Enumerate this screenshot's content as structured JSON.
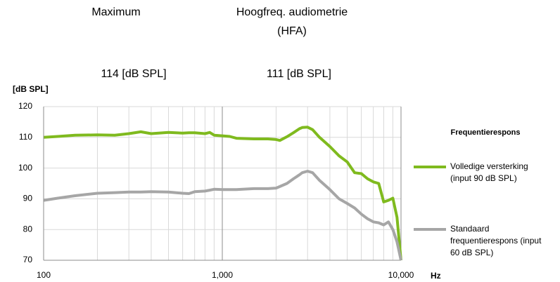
{
  "chart_data": {
    "type": "line",
    "summary": [
      {
        "label": "Maximum",
        "value": "114 [dB SPL]"
      },
      {
        "label": "Hoogfreq. audiometrie (HFA)",
        "value": "111 [dB SPL]"
      }
    ],
    "y_label": "[dB SPL]",
    "x_label": "Hz",
    "legend_title": "Frequentierespons",
    "legend": "right",
    "x_scale": "log",
    "grid": true,
    "xlim": [
      100,
      10000
    ],
    "xticks": [
      100,
      {
        "value": 1000,
        "label": "1,000"
      },
      {
        "value": 10000,
        "label": "10,000"
      }
    ],
    "ylim": [
      70,
      120
    ],
    "yticks": [
      70,
      80,
      90,
      100,
      110,
      120
    ],
    "x": [
      100,
      120,
      150,
      200,
      250,
      300,
      350,
      400,
      500,
      600,
      650,
      700,
      800,
      850,
      900,
      1000,
      1100,
      1200,
      1500,
      1800,
      2000,
      2100,
      2300,
      2500,
      2700,
      2800,
      3000,
      3200,
      3500,
      4000,
      4500,
      5000,
      5500,
      6000,
      6500,
      7000,
      7500,
      8000,
      8500,
      9000,
      9500,
      10000
    ],
    "series": [
      {
        "name": "Volledige versterking (input 90 dB SPL)",
        "color": "#7fba1e",
        "values": [
          110,
          110.3,
          110.7,
          110.8,
          110.7,
          111.2,
          111.8,
          111.2,
          111.6,
          111.4,
          111.5,
          111.5,
          111.2,
          111.6,
          110.7,
          110.5,
          110.3,
          109.7,
          109.5,
          109.5,
          109.3,
          109.0,
          110.2,
          111.5,
          112.8,
          113.2,
          113.3,
          112.5,
          110,
          107,
          104,
          102,
          98.5,
          98.2,
          96.5,
          95.5,
          95,
          89,
          89.5,
          90.2,
          84,
          70
        ]
      },
      {
        "name": "Standaard frequentierespons (input 60 dB SPL)",
        "color": "#a6a6a6",
        "values": [
          89.5,
          90.2,
          91,
          91.8,
          92,
          92.2,
          92.2,
          92.3,
          92.2,
          91.8,
          91.7,
          92.3,
          92.5,
          92.8,
          93.1,
          93,
          93,
          93,
          93.3,
          93.3,
          93.5,
          94,
          95,
          96.5,
          97.8,
          98.5,
          99,
          98.5,
          96,
          93,
          90,
          88.5,
          87,
          85,
          83.5,
          82.5,
          82.2,
          81.5,
          82.5,
          80,
          76,
          70
        ]
      }
    ]
  }
}
